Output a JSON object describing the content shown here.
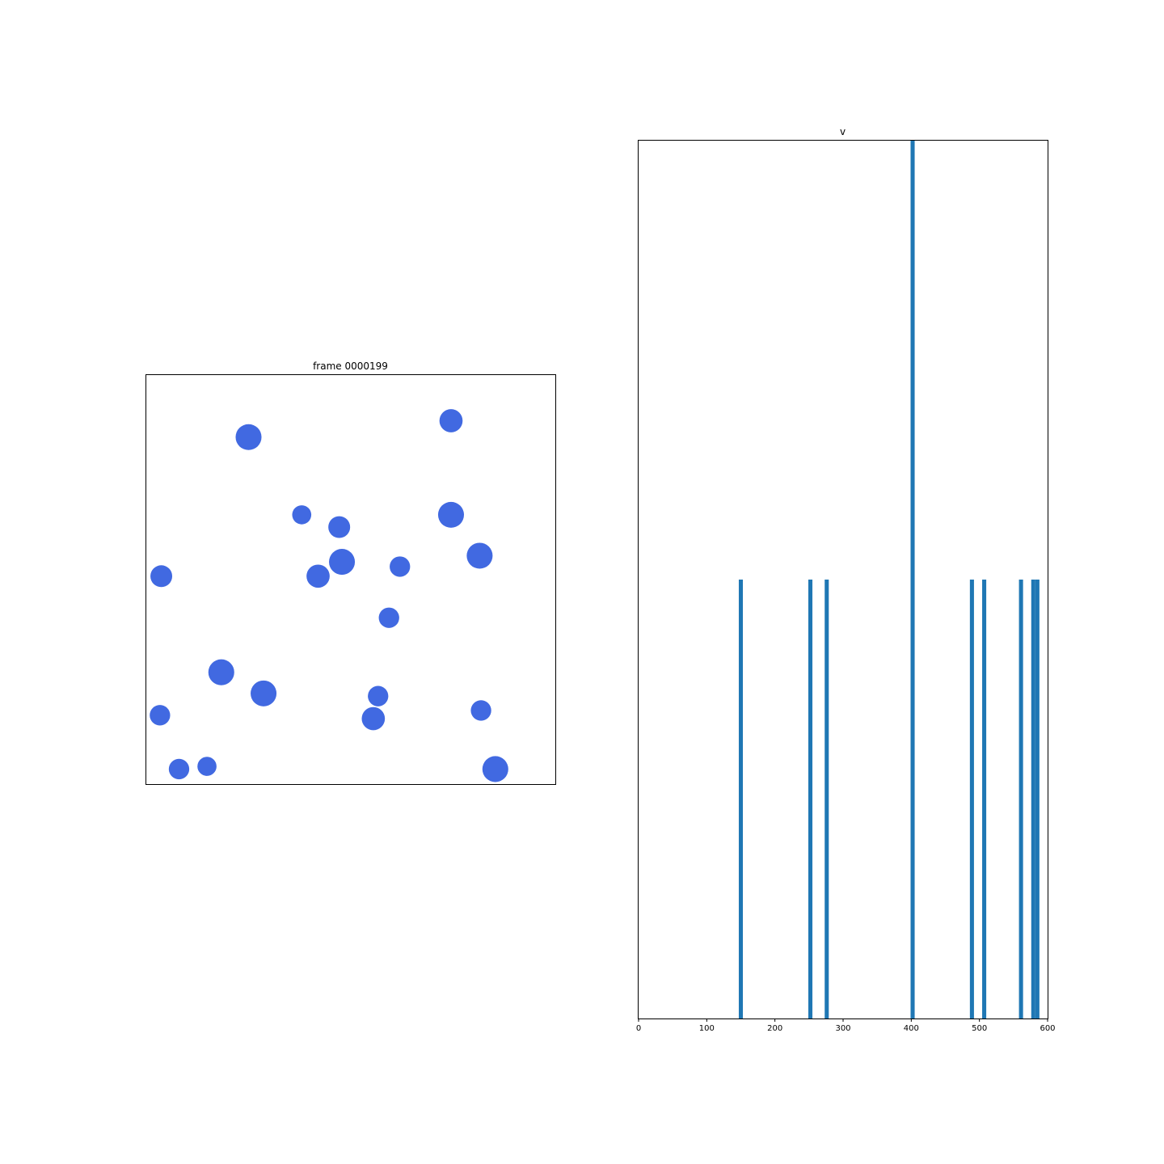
{
  "chart_data": [
    {
      "type": "scatter",
      "title": "frame 0000199",
      "axes_visible": false,
      "xlim": [
        0,
        600
      ],
      "ylim": [
        0,
        600
      ],
      "marker_color": "#4169e1",
      "particles": [
        {
          "x": 150,
          "y": 509,
          "r": 19
        },
        {
          "x": 447,
          "y": 533,
          "r": 17
        },
        {
          "x": 228,
          "y": 395,
          "r": 14
        },
        {
          "x": 283,
          "y": 377,
          "r": 16
        },
        {
          "x": 447,
          "y": 395,
          "r": 19
        },
        {
          "x": 489,
          "y": 335,
          "r": 19
        },
        {
          "x": 372,
          "y": 319,
          "r": 15
        },
        {
          "x": 287,
          "y": 326,
          "r": 19
        },
        {
          "x": 252,
          "y": 305,
          "r": 17
        },
        {
          "x": 22,
          "y": 305,
          "r": 16
        },
        {
          "x": 356,
          "y": 244,
          "r": 15
        },
        {
          "x": 110,
          "y": 164,
          "r": 19
        },
        {
          "x": 172,
          "y": 133,
          "r": 19
        },
        {
          "x": 340,
          "y": 129,
          "r": 15
        },
        {
          "x": 333,
          "y": 96,
          "r": 17
        },
        {
          "x": 491,
          "y": 108,
          "r": 15
        },
        {
          "x": 20,
          "y": 101,
          "r": 15
        },
        {
          "x": 89,
          "y": 26,
          "r": 14
        },
        {
          "x": 48,
          "y": 22,
          "r": 15
        },
        {
          "x": 512,
          "y": 22,
          "r": 19
        }
      ]
    },
    {
      "type": "bar",
      "title": "v",
      "bar_color": "#1f77b4",
      "xlim": [
        0,
        600
      ],
      "ylim": [
        0,
        2
      ],
      "xticks": [
        0,
        100,
        200,
        300,
        400,
        500,
        600
      ],
      "bin_width": 6,
      "bars": [
        {
          "x": 150,
          "value": 1
        },
        {
          "x": 252,
          "value": 1
        },
        {
          "x": 276,
          "value": 1
        },
        {
          "x": 402,
          "value": 2
        },
        {
          "x": 489,
          "value": 1
        },
        {
          "x": 507,
          "value": 1
        },
        {
          "x": 561,
          "value": 1
        },
        {
          "x": 579,
          "value": 1
        },
        {
          "x": 585,
          "value": 1
        }
      ]
    }
  ]
}
